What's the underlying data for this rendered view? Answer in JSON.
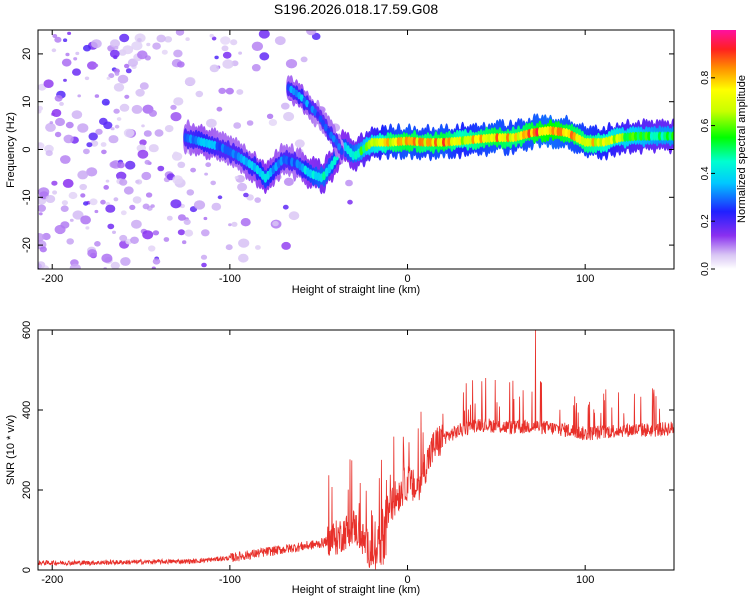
{
  "title": "S196.2026.018.17.59.G08",
  "chart_data": [
    {
      "type": "heatmap",
      "xlabel": "Height of straight line (km)",
      "ylabel": "Frequency (Hz)",
      "xlim": [
        -208,
        150
      ],
      "ylim": [
        -25,
        25
      ],
      "xticks": [
        -200,
        -100,
        0,
        100
      ],
      "xtick_labels": [
        "-200",
        "-100",
        "0",
        "100"
      ],
      "yticks": [
        -20,
        -10,
        0,
        10,
        20
      ],
      "ytick_labels": [
        "-20",
        "-10",
        "0",
        "10",
        "20"
      ],
      "colorbar": {
        "label": "Normalized spectral amplitude",
        "range": [
          0.0,
          1.0
        ],
        "ticks": [
          0.0,
          0.2,
          0.4,
          0.6,
          0.8
        ],
        "tick_labels": [
          "0.0",
          "0.2",
          "0.4",
          "0.6",
          "0.8"
        ]
      },
      "ridge": {
        "x": [
          -125,
          -115,
          -105,
          -95,
          -85,
          -80,
          -75,
          -70,
          -62,
          -55,
          -48,
          -42,
          -36,
          -30,
          -20,
          -10,
          0,
          10,
          20,
          30,
          40,
          50,
          60,
          70,
          80,
          90,
          100,
          110,
          120,
          130,
          140,
          150
        ],
        "freq": [
          2.5,
          1.5,
          0.5,
          -1.5,
          -4,
          -6,
          -4,
          -2,
          -3,
          -5,
          -6,
          -3,
          1,
          -1.5,
          1.5,
          1.5,
          1.8,
          1.5,
          1.5,
          1.8,
          2.2,
          2.5,
          2.5,
          3.5,
          4,
          3.5,
          1.5,
          1.5,
          2.5,
          2.8,
          2.8,
          2.8
        ],
        "amplitude": [
          0.3,
          0.35,
          0.3,
          0.3,
          0.35,
          0.4,
          0.35,
          0.3,
          0.3,
          0.4,
          0.45,
          0.4,
          0.4,
          0.45,
          0.6,
          0.75,
          0.8,
          0.75,
          0.8,
          0.7,
          0.75,
          0.8,
          0.75,
          0.8,
          0.85,
          0.8,
          0.75,
          0.7,
          0.6,
          0.55,
          0.5,
          0.5
        ]
      },
      "branch": {
        "x": [
          -67,
          -60,
          -55,
          -50,
          -45,
          -40,
          -36
        ],
        "freq": [
          13,
          11,
          9,
          7,
          4,
          1.5,
          -1
        ],
        "amplitude": [
          0.3,
          0.35,
          0.3,
          0.25,
          0.3,
          0.3,
          0.25
        ]
      }
    },
    {
      "type": "line",
      "xlabel": "Height of straight line (km)",
      "ylabel": "SNR (10 * v/v)",
      "xlim": [
        -208,
        150
      ],
      "ylim": [
        0,
        600
      ],
      "xticks": [
        -200,
        -100,
        0,
        100
      ],
      "xtick_labels": [
        "-200",
        "-100",
        "0",
        "100"
      ],
      "yticks": [
        0,
        200,
        400,
        600
      ],
      "ytick_labels": [
        "0",
        "200",
        "400",
        "600"
      ],
      "color": "#e8302a",
      "x": [
        -208,
        -180,
        -150,
        -120,
        -100,
        -80,
        -65,
        -50,
        -40,
        -30,
        -20,
        -10,
        0,
        5,
        10,
        15,
        20,
        30,
        40,
        50,
        60,
        70,
        80,
        90,
        100,
        110,
        120,
        130,
        140,
        150
      ],
      "y": [
        18,
        18,
        20,
        22,
        30,
        45,
        55,
        65,
        80,
        110,
        40,
        160,
        220,
        200,
        260,
        310,
        330,
        350,
        365,
        360,
        355,
        360,
        355,
        350,
        340,
        345,
        350,
        350,
        350,
        355
      ],
      "peak": {
        "x": 72,
        "y": 600
      }
    }
  ]
}
